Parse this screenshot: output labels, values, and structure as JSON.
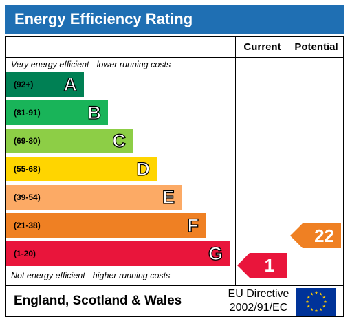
{
  "title": "Energy Efficiency Rating",
  "columns": {
    "current": "Current",
    "potential": "Potential"
  },
  "notes": {
    "top": "Very energy efficient - lower running costs",
    "bottom": "Not energy efficient - higher running costs"
  },
  "bands": [
    {
      "range": "(92+)",
      "letter": "A",
      "color": "#008054"
    },
    {
      "range": "(81-91)",
      "letter": "B",
      "color": "#19b459"
    },
    {
      "range": "(69-80)",
      "letter": "C",
      "color": "#8dce46"
    },
    {
      "range": "(55-68)",
      "letter": "D",
      "color": "#ffd500"
    },
    {
      "range": "(39-54)",
      "letter": "E",
      "color": "#fcaa65"
    },
    {
      "range": "(21-38)",
      "letter": "F",
      "color": "#ef8023"
    },
    {
      "range": "(1-20)",
      "letter": "G",
      "color": "#e9153b"
    }
  ],
  "current": {
    "value": "1",
    "band": "G",
    "color": "#e9153b"
  },
  "potential": {
    "value": "22",
    "band": "F",
    "color": "#ef8023"
  },
  "footer": {
    "region": "England, Scotland & Wales",
    "directive_line1": "EU Directive",
    "directive_line2": "2002/91/EC",
    "flag_icon": "eu-flag-icon",
    "flag_colors": {
      "background": "#003399",
      "stars": "#ffcc00"
    }
  }
}
